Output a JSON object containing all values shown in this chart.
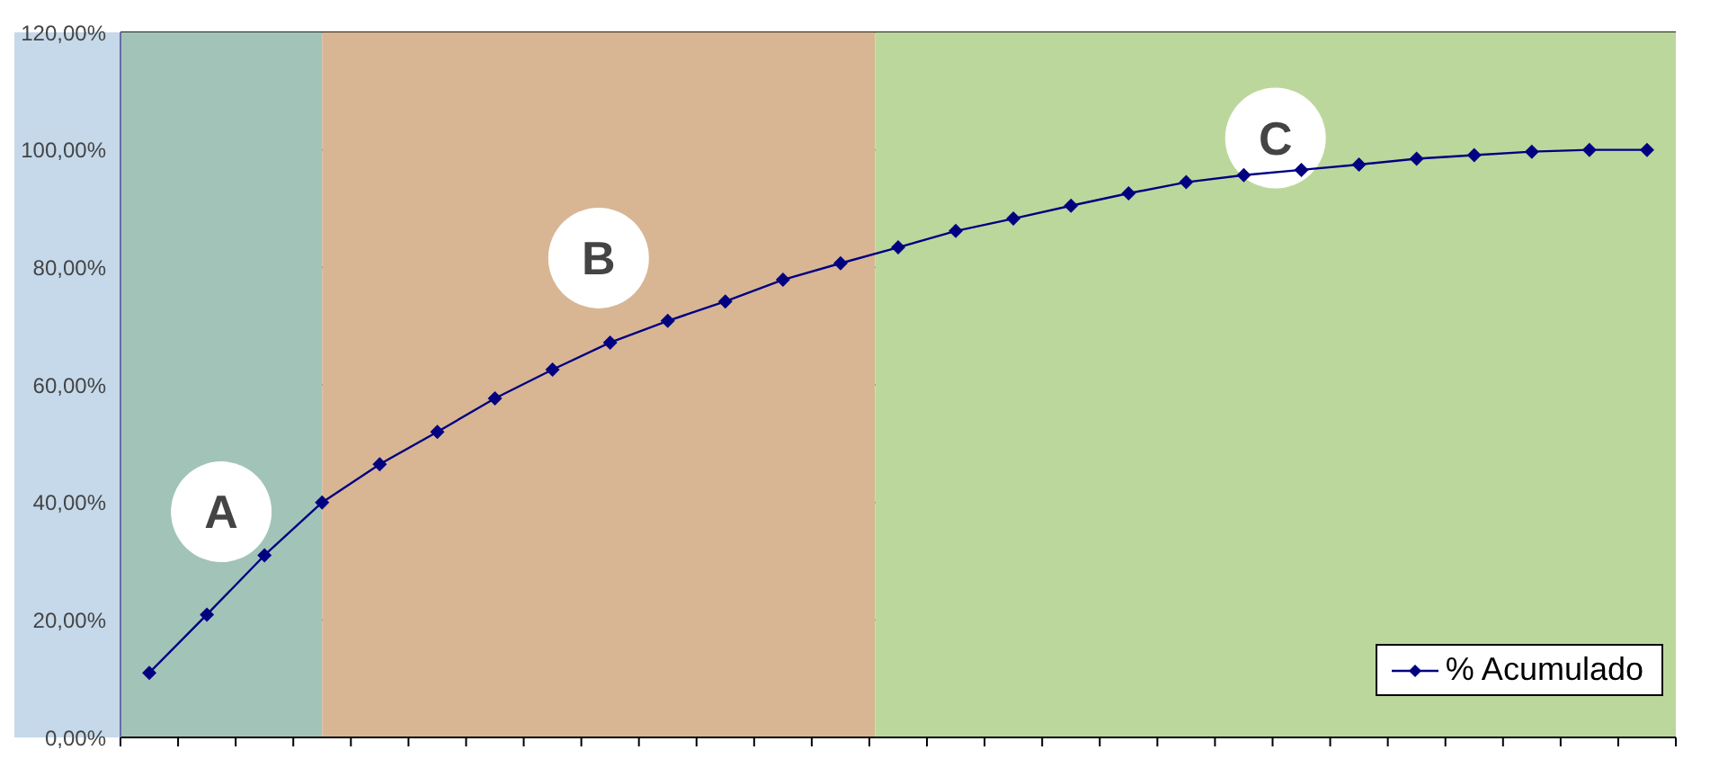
{
  "chart_data": {
    "type": "line",
    "categories": [
      null,
      null,
      null,
      null,
      null,
      null,
      null,
      null,
      null,
      null,
      null,
      null,
      null,
      null,
      null,
      null,
      null,
      null,
      null,
      null,
      null,
      null,
      null,
      null,
      null,
      null,
      null
    ],
    "series": [
      {
        "name": "% Acumulado",
        "color": "#000080",
        "values": [
          11.0,
          20.9,
          31.0,
          40.0,
          46.5,
          52.0,
          57.7,
          62.6,
          67.2,
          70.9,
          74.2,
          77.9,
          80.7,
          83.4,
          86.2,
          88.3,
          90.5,
          92.6,
          94.5,
          95.7,
          96.6,
          97.5,
          98.5,
          99.1,
          99.7,
          100,
          100
        ]
      }
    ],
    "ylim": [
      0,
      120
    ],
    "yticks": [
      {
        "value": 0,
        "label": "0,00%"
      },
      {
        "value": 20,
        "label": "20,00%"
      },
      {
        "value": 40,
        "label": "40,00%"
      },
      {
        "value": 60,
        "label": "60,00%"
      },
      {
        "value": 80,
        "label": "80,00%"
      },
      {
        "value": 100,
        "label": "100,00%"
      },
      {
        "value": 120,
        "label": "120,00%"
      }
    ],
    "annotations": [
      "A",
      "B",
      "C"
    ],
    "grid": "y",
    "legend": "bottom right",
    "marker": "diamond",
    "line_style": "solid"
  }
}
